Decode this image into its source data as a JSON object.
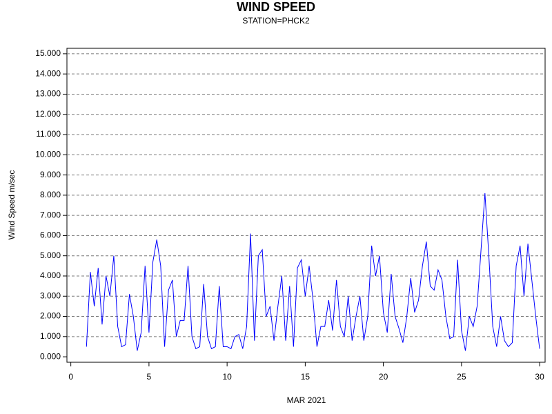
{
  "chart_data": {
    "type": "line",
    "title": "WIND SPEED",
    "subtitle": "STATION=PHCK2",
    "x_label": "MAR 2021",
    "y_label": "Wind Speed m/sec",
    "xlim": [
      -0.25,
      30.35
    ],
    "ylim": [
      -0.27,
      15.27
    ],
    "xticks": [
      0,
      5,
      10,
      15,
      20,
      25,
      30
    ],
    "yticks": [
      {
        "value": 0,
        "label": "0.000"
      },
      {
        "value": 1,
        "label": "1.000"
      },
      {
        "value": 2,
        "label": "2.000"
      },
      {
        "value": 3,
        "label": "3.000"
      },
      {
        "value": 4,
        "label": "4.000"
      },
      {
        "value": 5,
        "label": "5.000"
      },
      {
        "value": 6,
        "label": "6.000"
      },
      {
        "value": 7,
        "label": "7.000"
      },
      {
        "value": 8,
        "label": "8.000"
      },
      {
        "value": 9,
        "label": "9.000"
      },
      {
        "value": 10,
        "label": "10.000"
      },
      {
        "value": 11,
        "label": "11.000"
      },
      {
        "value": 12,
        "label": "12.000"
      },
      {
        "value": 13,
        "label": "13.000"
      },
      {
        "value": 14,
        "label": "14.000"
      },
      {
        "value": 15,
        "label": "15.000"
      }
    ],
    "grid": true,
    "color": "#0000ff",
    "x": [
      1.0,
      1.25,
      1.5,
      1.75,
      2.0,
      2.25,
      2.5,
      2.75,
      3.0,
      3.25,
      3.5,
      3.75,
      4.0,
      4.25,
      4.5,
      4.75,
      5.0,
      5.25,
      5.5,
      5.75,
      6.0,
      6.25,
      6.5,
      6.75,
      7.0,
      7.25,
      7.5,
      7.75,
      8.0,
      8.25,
      8.5,
      8.75,
      9.0,
      9.25,
      9.5,
      9.75,
      10.0,
      10.25,
      10.5,
      10.75,
      11.0,
      11.25,
      11.5,
      11.75,
      12.0,
      12.25,
      12.5,
      12.75,
      13.0,
      13.25,
      13.5,
      13.75,
      14.0,
      14.25,
      14.5,
      14.75,
      15.0,
      15.25,
      15.5,
      15.75,
      16.0,
      16.25,
      16.5,
      16.75,
      17.0,
      17.25,
      17.5,
      17.75,
      18.0,
      18.25,
      18.5,
      18.75,
      19.0,
      19.25,
      19.5,
      19.75,
      20.0,
      20.25,
      20.5,
      20.75,
      21.0,
      21.25,
      21.5,
      21.75,
      22.0,
      22.25,
      22.5,
      22.75,
      23.0,
      23.25,
      23.5,
      23.75,
      24.0,
      24.25,
      24.5,
      24.75,
      25.0,
      25.25,
      25.5,
      25.75,
      26.0,
      26.25,
      26.5,
      26.75,
      27.0,
      27.25,
      27.5,
      27.75,
      28.0,
      28.25,
      28.5,
      28.75,
      29.0,
      29.25,
      29.5,
      29.75,
      30.0
    ],
    "values": [
      0.5,
      4.2,
      2.5,
      4.4,
      1.6,
      4.0,
      3.0,
      5.0,
      1.5,
      0.5,
      0.6,
      3.1,
      2.0,
      0.3,
      1.2,
      4.5,
      1.2,
      4.7,
      5.8,
      4.5,
      0.5,
      3.3,
      3.8,
      1.0,
      1.8,
      1.8,
      4.5,
      1.0,
      0.4,
      0.5,
      3.6,
      1.0,
      0.4,
      0.5,
      3.5,
      0.5,
      0.5,
      0.4,
      1.0,
      1.1,
      0.4,
      1.5,
      6.1,
      0.8,
      5.0,
      5.3,
      2.0,
      2.5,
      0.8,
      2.5,
      4.0,
      0.8,
      3.5,
      0.5,
      4.4,
      4.8,
      3.0,
      4.5,
      2.8,
      0.5,
      1.5,
      1.5,
      2.8,
      1.3,
      3.8,
      1.5,
      1.0,
      3.0,
      0.8,
      2.0,
      3.0,
      0.8,
      2.0,
      5.5,
      4.0,
      5.0,
      2.2,
      1.2,
      4.1,
      2.0,
      1.4,
      0.7,
      2.0,
      3.9,
      2.2,
      2.8,
      4.5,
      5.7,
      3.5,
      3.3,
      4.3,
      3.8,
      2.0,
      0.9,
      1.0,
      4.8,
      1.3,
      0.3,
      2.0,
      1.5,
      2.5,
      5.3,
      8.1,
      5.0,
      1.5,
      0.5,
      2.0,
      0.8,
      0.5,
      0.7,
      4.5,
      5.5,
      3.0,
      5.6,
      3.8,
      2.0,
      0.4
    ]
  }
}
